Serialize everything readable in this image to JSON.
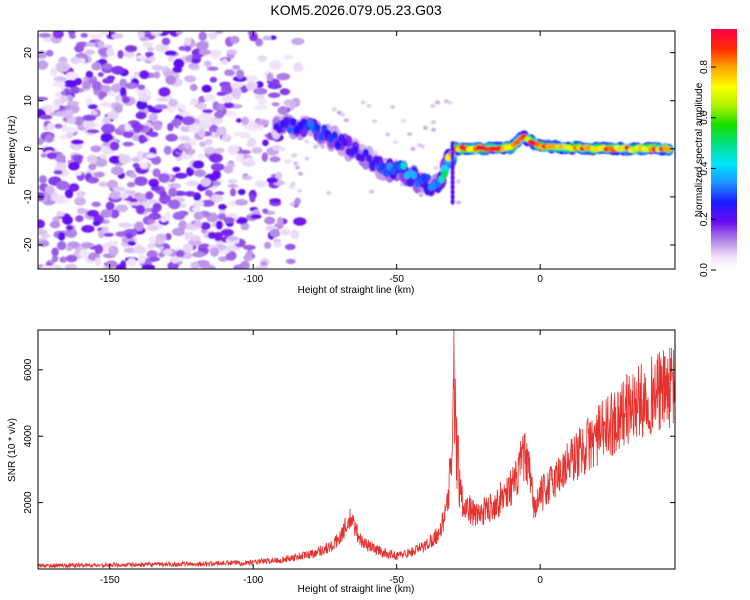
{
  "title": "KOM5.2026.079.05.23.G03",
  "colors": {
    "axis": "#000000",
    "snr_line": "#e8302c",
    "background": "#ffffff"
  },
  "chart_data": [
    {
      "type": "heatmap",
      "title": "KOM5.2026.079.05.23.G03",
      "xlabel": "Height of straight line (km)",
      "ylabel": "Frequency (Hz)",
      "xlim": [
        -175,
        47
      ],
      "ylim": [
        -25,
        24.5
      ],
      "xticks": [
        -150,
        -100,
        -50,
        0
      ],
      "yticks": [
        -20,
        -10,
        0,
        10,
        20
      ],
      "colorbar": {
        "label": "Normalized spectral amplitude",
        "range": [
          0,
          0.95
        ],
        "ticks": [
          0.0,
          0.2,
          0.4,
          0.6,
          0.8
        ]
      },
      "features": {
        "noise_region_x": [
          -175,
          -90
        ],
        "ridge": [
          {
            "x": -92,
            "f": 4.5,
            "amp": 0.25
          },
          {
            "x": -85,
            "f": 5,
            "amp": 0.35
          },
          {
            "x": -78,
            "f": 4,
            "amp": 0.3
          },
          {
            "x": -70,
            "f": 1.5,
            "amp": 0.3
          },
          {
            "x": -62,
            "f": -1.5,
            "amp": 0.25
          },
          {
            "x": -55,
            "f": -4,
            "amp": 0.3
          },
          {
            "x": -48,
            "f": -4.5,
            "amp": 0.45
          },
          {
            "x": -42,
            "f": -6.5,
            "amp": 0.4
          },
          {
            "x": -36,
            "f": -8,
            "amp": 0.35
          },
          {
            "x": -30,
            "f": 0,
            "amp": 0.95
          },
          {
            "x": -10,
            "f": 0.2,
            "amp": 0.95
          },
          {
            "x": -6,
            "f": 2.5,
            "amp": 0.9
          },
          {
            "x": 0,
            "f": 0.5,
            "amp": 0.9
          },
          {
            "x": 20,
            "f": 0,
            "amp": 0.9
          },
          {
            "x": 45,
            "f": 0,
            "amp": 0.95
          }
        ]
      }
    },
    {
      "type": "line",
      "title": "",
      "xlabel": "Height of straight line (km)",
      "ylabel": "SNR (10 * v/v)",
      "xlim": [
        -175,
        47
      ],
      "ylim": [
        0,
        7200
      ],
      "xticks": [
        -150,
        -100,
        -50,
        0
      ],
      "yticks": [
        2000,
        4000,
        6000
      ],
      "series": [
        {
          "name": "SNR",
          "color": "#e8302c",
          "trend": [
            [
              -175,
              100
            ],
            [
              -150,
              120
            ],
            [
              -120,
              150
            ],
            [
              -100,
              200
            ],
            [
              -90,
              280
            ],
            [
              -80,
              450
            ],
            [
              -72,
              700
            ],
            [
              -66,
              1500
            ],
            [
              -62,
              800
            ],
            [
              -55,
              500
            ],
            [
              -50,
              400
            ],
            [
              -45,
              500
            ],
            [
              -40,
              700
            ],
            [
              -35,
              1100
            ],
            [
              -32,
              2000
            ],
            [
              -30,
              5500
            ],
            [
              -29,
              3500
            ],
            [
              -27,
              2000
            ],
            [
              -22,
              1600
            ],
            [
              -15,
              2000
            ],
            [
              -8,
              2700
            ],
            [
              -6,
              3500
            ],
            [
              -4,
              3000
            ],
            [
              -2,
              1800
            ],
            [
              0,
              2200
            ],
            [
              10,
              3200
            ],
            [
              20,
              4000
            ],
            [
              30,
              4800
            ],
            [
              40,
              5300
            ],
            [
              47,
              5500
            ]
          ]
        }
      ]
    }
  ]
}
